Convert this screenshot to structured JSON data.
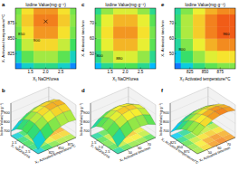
{
  "chart_data": [
    {
      "type": "contour",
      "panel_label": "a",
      "title": "Iodine Value(mg·g⁻¹)",
      "xlabel": "X₁ NaOH/urea",
      "ylabel": "X₂ Activated temperature/°C",
      "x": [
        1,
        1.4,
        1.8,
        2.2,
        2.6,
        3
      ],
      "y": [
        800,
        820,
        840,
        860,
        880,
        900
      ],
      "z": [
        [
          696,
          760,
          792,
          792,
          760,
          696
        ],
        [
          764,
          828,
          860,
          860,
          828,
          764
        ],
        [
          812,
          876,
          908,
          908,
          876,
          812
        ],
        [
          840,
          904,
          936,
          936,
          904,
          840
        ],
        [
          850,
          914,
          946,
          946,
          914,
          850
        ],
        [
          840,
          904,
          936,
          936,
          904,
          840
        ]
      ],
      "xlim": [
        1,
        3
      ],
      "ylim": [
        800,
        900
      ],
      "zlim": [
        650,
        980
      ],
      "xticks": [
        1.5,
        {
          "value": 2,
          "label": "2.0"
        },
        2.5
      ],
      "yticks": [
        825,
        850,
        875
      ],
      "annotations": [
        {
          "text": "850",
          "x": 1.2,
          "y": 855
        },
        {
          "text": "900",
          "x": 1.7,
          "y": 845
        }
      ],
      "optimum": {
        "x": 2,
        "y": 878
      }
    },
    {
      "type": "surface3d",
      "panel_label": "b",
      "xlabel": "X₁ NaOH/urea",
      "ylabel": "X₂ Activated temperature/°C",
      "zlabel": "Iodine Value(mg·g⁻¹)",
      "x": [
        1,
        1.4,
        1.8,
        2.2,
        2.6,
        3
      ],
      "y": [
        800,
        820,
        840,
        860,
        880,
        900
      ],
      "z": [
        [
          696,
          760,
          792,
          792,
          760,
          696
        ],
        [
          764,
          828,
          860,
          860,
          828,
          764
        ],
        [
          812,
          876,
          908,
          908,
          876,
          812
        ],
        [
          840,
          904,
          936,
          936,
          904,
          840
        ],
        [
          850,
          914,
          946,
          946,
          914,
          850
        ],
        [
          840,
          904,
          936,
          936,
          904,
          840
        ]
      ],
      "xlim": [
        1,
        3
      ],
      "ylim": [
        800,
        900
      ],
      "zlim": [
        650,
        1000
      ],
      "xticks": [
        1.5,
        {
          "value": 2,
          "label": "2.0"
        },
        2.5
      ],
      "yticks": [
        825,
        850,
        875
      ],
      "zticks": [
        700,
        800,
        900
      ]
    },
    {
      "type": "contour",
      "panel_label": "c",
      "title": "Iodine Value(mg·g⁻¹)",
      "xlabel": "X₁ NaOH/urea",
      "ylabel": "X₃ Activated time/min",
      "x": [
        1,
        1.4,
        1.8,
        2.2,
        2.6,
        3
      ],
      "y": [
        40,
        48,
        56,
        64,
        72,
        80
      ],
      "z": [
        [
          725,
          789,
          821,
          821,
          789,
          725
        ],
        [
          789,
          853,
          885,
          885,
          853,
          789
        ],
        [
          827,
          891,
          923,
          923,
          891,
          827
        ],
        [
          840,
          904,
          936,
          936,
          904,
          840
        ],
        [
          827,
          891,
          923,
          923,
          891,
          827
        ],
        [
          789,
          853,
          885,
          885,
          853,
          789
        ]
      ],
      "xlim": [
        1,
        3
      ],
      "ylim": [
        40,
        80
      ],
      "zlim": [
        650,
        980
      ],
      "xticks": [
        1.5,
        {
          "value": 2,
          "label": "2.0"
        },
        2.5
      ],
      "yticks": [
        50,
        60,
        70
      ],
      "annotations": [
        {
          "text": "800",
          "x": 1.15,
          "y": 48
        },
        {
          "text": "880",
          "x": 1.8,
          "y": 46
        }
      ]
    },
    {
      "type": "surface3d",
      "panel_label": "d",
      "xlabel": "X₁ NaOH/urea",
      "ylabel": "X₃ Activated time/min",
      "zlabel": "Iodine Value(mg·g⁻¹)",
      "x": [
        1,
        1.4,
        1.8,
        2.2,
        2.6,
        3
      ],
      "y": [
        40,
        48,
        56,
        64,
        72,
        80
      ],
      "z": [
        [
          725,
          789,
          821,
          821,
          789,
          725
        ],
        [
          789,
          853,
          885,
          885,
          853,
          789
        ],
        [
          827,
          891,
          923,
          923,
          891,
          827
        ],
        [
          840,
          904,
          936,
          936,
          904,
          840
        ],
        [
          827,
          891,
          923,
          923,
          891,
          827
        ],
        [
          789,
          853,
          885,
          885,
          853,
          789
        ]
      ],
      "xlim": [
        1,
        3
      ],
      "ylim": [
        40,
        80
      ],
      "zlim": [
        650,
        1000
      ],
      "xticks": [
        1.5,
        {
          "value": 2,
          "label": "2.0"
        },
        2.5
      ],
      "yticks": [
        50,
        60,
        70
      ],
      "zticks": [
        700,
        800,
        900
      ]
    },
    {
      "type": "contour",
      "panel_label": "e",
      "title": "Iodine Value(mg·g⁻¹)",
      "xlabel": "X₂ Activated temperature/°C",
      "ylabel": "X₃ Activated time/min",
      "x": [
        800,
        820,
        840,
        860,
        880,
        900
      ],
      "y": [
        40,
        48,
        56,
        64,
        72,
        80
      ],
      "z": [
        [
          685,
          749,
          797,
          829,
          845,
          845
        ],
        [
          743,
          807,
          855,
          887,
          903,
          903
        ],
        [
          781,
          845,
          893,
          925,
          941,
          941
        ],
        [
          801,
          865,
          913,
          945,
          961,
          961
        ],
        [
          801,
          865,
          913,
          945,
          961,
          961
        ],
        [
          781,
          845,
          893,
          925,
          941,
          941
        ]
      ],
      "xlim": [
        800,
        900
      ],
      "ylim": [
        40,
        80
      ],
      "zlim": [
        650,
        980
      ],
      "xticks": [
        825,
        850,
        875
      ],
      "yticks": [
        50,
        60,
        70
      ],
      "annotations": [
        {
          "text": "800",
          "x": 812,
          "y": 52
        },
        {
          "text": "960",
          "x": 885,
          "y": 62
        }
      ]
    },
    {
      "type": "surface3d",
      "panel_label": "f",
      "xlabel": "X₂ Activated temperature/°C",
      "ylabel": "X₃ Activated time/min",
      "zlabel": "Iodine Value(mg·g⁻¹)",
      "x": [
        800,
        820,
        840,
        860,
        880,
        900
      ],
      "y": [
        40,
        48,
        56,
        64,
        72,
        80
      ],
      "z": [
        [
          685,
          749,
          797,
          829,
          845,
          845
        ],
        [
          743,
          807,
          855,
          887,
          903,
          903
        ],
        [
          781,
          845,
          893,
          925,
          941,
          941
        ],
        [
          801,
          865,
          913,
          945,
          961,
          961
        ],
        [
          801,
          865,
          913,
          945,
          961,
          961
        ],
        [
          781,
          845,
          893,
          925,
          941,
          941
        ]
      ],
      "xlim": [
        800,
        900
      ],
      "ylim": [
        40,
        80
      ],
      "zlim": [
        650,
        1000
      ],
      "xticks": [
        825,
        850,
        875
      ],
      "yticks": [
        50,
        60,
        70
      ],
      "zticks": [
        700,
        800,
        900
      ]
    }
  ]
}
